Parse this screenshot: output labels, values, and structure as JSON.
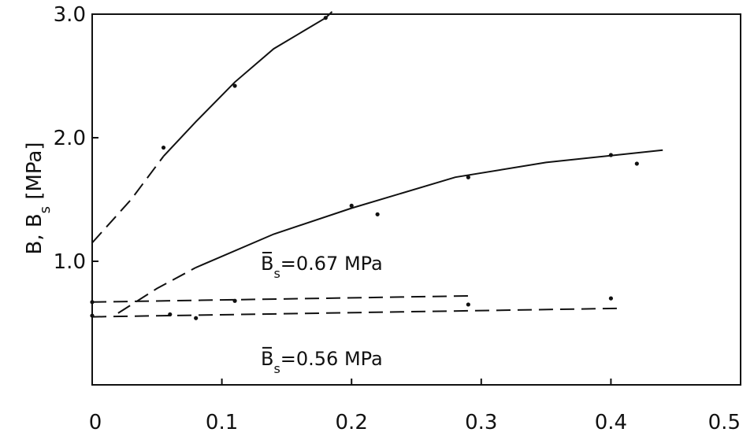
{
  "chart_data": {
    "type": "line",
    "title": "",
    "xlabel": "",
    "ylabel": "B, B_s [MPa]",
    "ylabel_parts": {
      "main": "B, B",
      "sub": "s",
      "unit": " [MPa]"
    },
    "xlim": [
      0,
      0.5
    ],
    "ylim": [
      0,
      3.0
    ],
    "x_ticks": [
      {
        "value": 0,
        "label": "0"
      },
      {
        "value": 0.1,
        "label": "0.1"
      },
      {
        "value": 0.2,
        "label": "0.2"
      },
      {
        "value": 0.3,
        "label": "0.3"
      },
      {
        "value": 0.4,
        "label": "0.4"
      },
      {
        "value": 0.5,
        "label": "0.5"
      }
    ],
    "y_ticks": [
      {
        "value": 1.0,
        "label": "1.0"
      },
      {
        "value": 2.0,
        "label": "2.0"
      },
      {
        "value": 3.0,
        "label": "3.0"
      }
    ],
    "grid": false,
    "series": [
      {
        "dashed_segment": [
          [
            0,
            1.15
          ],
          [
            0.03,
            1.5
          ],
          [
            0.055,
            1.85
          ]
        ],
        "solid_segment": [
          [
            0.055,
            1.85
          ],
          [
            0.08,
            2.13
          ],
          [
            0.11,
            2.45
          ],
          [
            0.14,
            2.72
          ],
          [
            0.18,
            2.97
          ],
          [
            0.185,
            3.02
          ]
        ],
        "markers": [
          [
            0.055,
            1.92
          ],
          [
            0.11,
            2.42
          ],
          [
            0.18,
            2.97
          ]
        ]
      },
      {
        "dashed_segment": [
          [
            0.02,
            0.58
          ],
          [
            0.05,
            0.78
          ],
          [
            0.08,
            0.95
          ]
        ],
        "solid_segment": [
          [
            0.08,
            0.95
          ],
          [
            0.14,
            1.22
          ],
          [
            0.2,
            1.43
          ],
          [
            0.28,
            1.68
          ],
          [
            0.35,
            1.8
          ],
          [
            0.44,
            1.9
          ]
        ],
        "markers": [
          [
            0.2,
            1.45
          ],
          [
            0.22,
            1.38
          ],
          [
            0.29,
            1.68
          ],
          [
            0.4,
            1.86
          ],
          [
            0.42,
            1.79
          ]
        ]
      },
      {
        "dashed_segment": [
          [
            0,
            0.67
          ],
          [
            0.29,
            0.72
          ]
        ],
        "markers": [
          [
            0,
            0.67
          ],
          [
            0.11,
            0.68
          ],
          [
            0.29,
            0.65
          ]
        ]
      },
      {
        "dashed_segment": [
          [
            0,
            0.55
          ],
          [
            0.41,
            0.62
          ]
        ],
        "markers": [
          [
            0,
            0.56
          ],
          [
            0.06,
            0.57
          ],
          [
            0.08,
            0.54
          ],
          [
            0.4,
            0.7
          ]
        ]
      }
    ],
    "annotations": [
      {
        "main": "B",
        "sub": "s",
        "rest": "=0.67 MPa",
        "x": 0.13,
        "y": 0.93
      },
      {
        "main": "B",
        "sub": "s",
        "rest": "=0.56 MPa",
        "x": 0.13,
        "y": 0.16
      }
    ]
  }
}
